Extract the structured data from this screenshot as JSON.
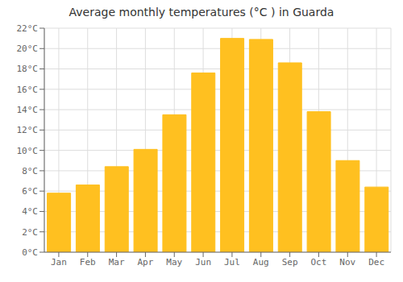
{
  "chart_data": {
    "type": "bar",
    "title": "Average monthly temperatures (°C ) in Guarda",
    "categories": [
      "Jan",
      "Feb",
      "Mar",
      "Apr",
      "May",
      "Jun",
      "Jul",
      "Aug",
      "Sep",
      "Oct",
      "Nov",
      "Dec"
    ],
    "values": [
      5.8,
      6.6,
      8.4,
      10.1,
      13.5,
      17.6,
      21.0,
      20.9,
      18.6,
      13.8,
      9.0,
      6.4
    ],
    "color": "#FFC020",
    "ylim": [
      0,
      22
    ],
    "yticks": [
      {
        "value": 0,
        "label": "0°C"
      },
      {
        "value": 2,
        "label": "2°C"
      },
      {
        "value": 4,
        "label": "4°C"
      },
      {
        "value": 6,
        "label": "6°C"
      },
      {
        "value": 8,
        "label": "8°C"
      },
      {
        "value": 10,
        "label": "10°C"
      },
      {
        "value": 12,
        "label": "12°C"
      },
      {
        "value": 14,
        "label": "14°C"
      },
      {
        "value": 16,
        "label": "16°C"
      },
      {
        "value": 18,
        "label": "18°C"
      },
      {
        "value": 20,
        "label": "20°C"
      },
      {
        "value": 22,
        "label": "22°C"
      }
    ],
    "grid": true
  }
}
